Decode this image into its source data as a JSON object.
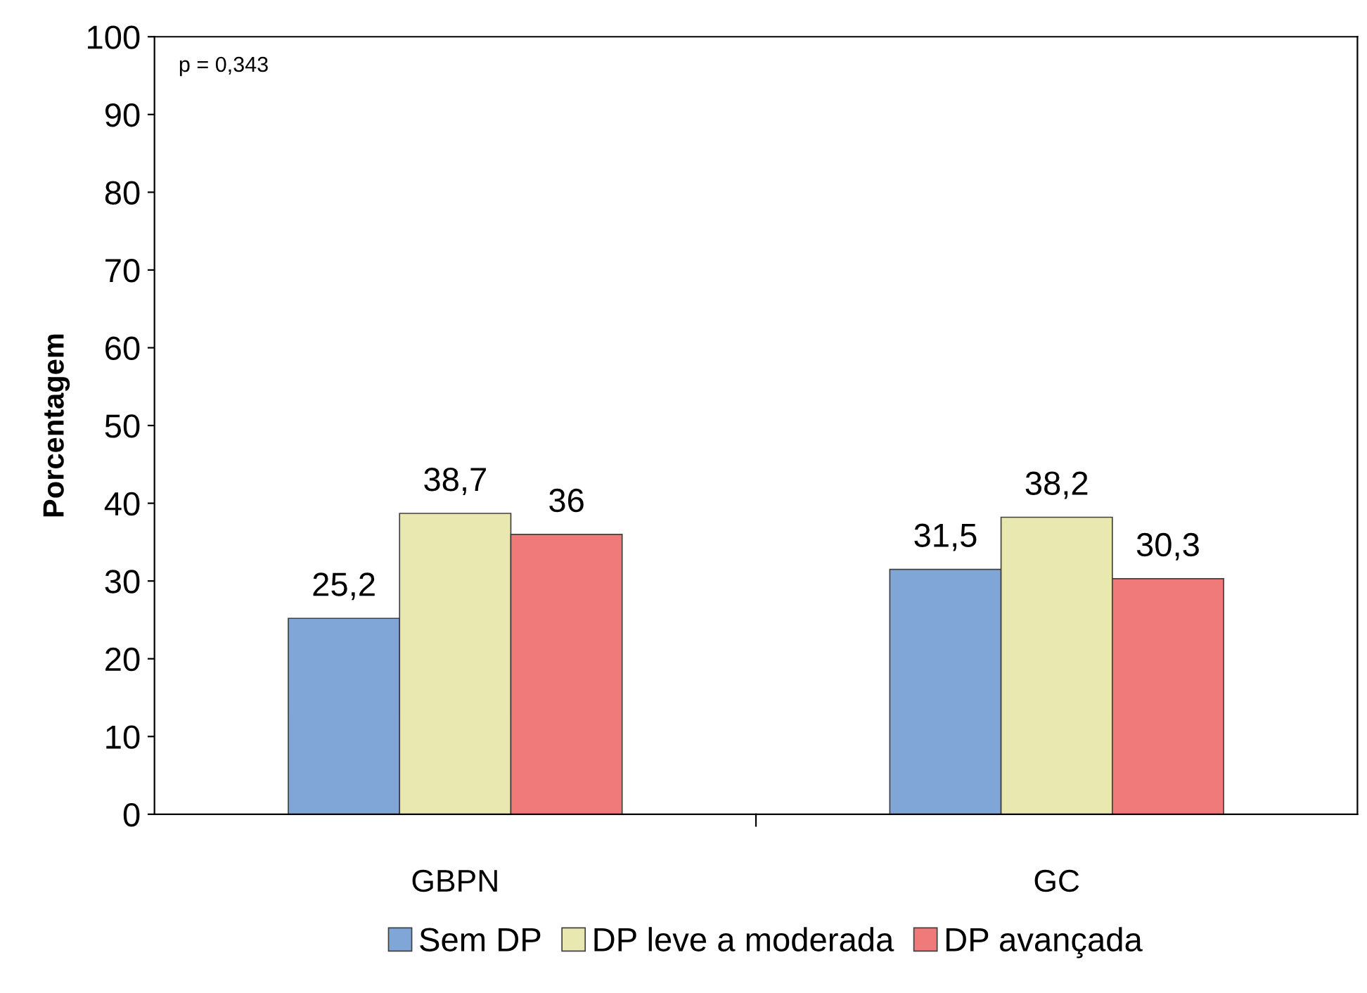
{
  "chart_data": {
    "type": "bar",
    "ylabel": "Porcentagem",
    "categories": [
      "GBPN",
      "GC"
    ],
    "series": [
      {
        "name": "Sem DP",
        "color": "#7fa6d6",
        "values": [
          25.2,
          31.5
        ],
        "value_labels": [
          "25,2",
          "31,5"
        ]
      },
      {
        "name": "DP leve a moderada",
        "color": "#e8e8b0",
        "values": [
          38.7,
          38.2
        ],
        "value_labels": [
          "38,7",
          "38,2"
        ]
      },
      {
        "name": "DP avançada",
        "color": "#f07a7a",
        "values": [
          36,
          30.3
        ],
        "value_labels": [
          "36",
          "30,3"
        ]
      }
    ],
    "ylim": [
      0,
      100
    ],
    "yticks": [
      0,
      10,
      20,
      30,
      40,
      50,
      60,
      70,
      80,
      90,
      100
    ],
    "grid": false,
    "legend": "bottom",
    "annotations": [
      "p = 0,343"
    ]
  }
}
